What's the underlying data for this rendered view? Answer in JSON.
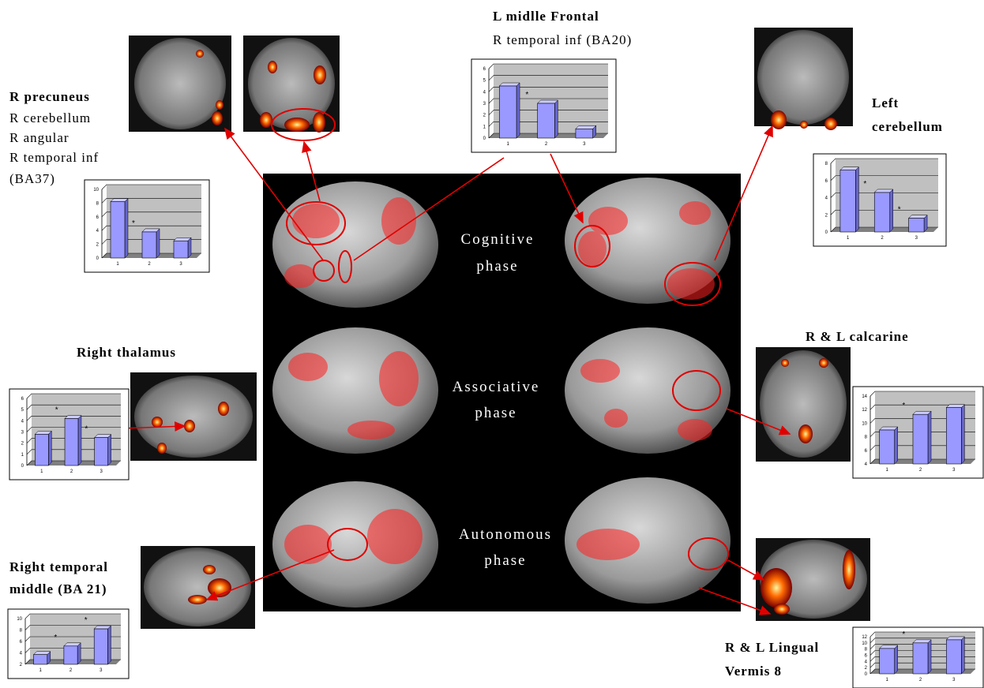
{
  "chart_data": [
    {
      "type": "bar",
      "categories": [
        "1",
        "2",
        "3"
      ],
      "values": [
        8.2,
        3.8,
        2.5
      ],
      "ylim": [
        0,
        10
      ],
      "yticks": [
        0,
        2,
        4,
        6,
        8,
        10
      ],
      "color": "#9999ff",
      "annotations": [
        "*"
      ]
    },
    {
      "type": "bar",
      "categories": [
        "1",
        "2",
        "3"
      ],
      "values": [
        4.5,
        3,
        0.8
      ],
      "ylim": [
        0,
        6
      ],
      "yticks": [
        0,
        1,
        2,
        3,
        4,
        5,
        6
      ],
      "color": "#9999ff",
      "annotations": [
        "*"
      ]
    },
    {
      "type": "bar",
      "categories": [
        "1",
        "2",
        "3"
      ],
      "values": [
        7.2,
        4.6,
        1.6
      ],
      "ylim": [
        0,
        8
      ],
      "yticks": [
        0,
        2,
        4,
        6,
        8
      ],
      "color": "#9999ff",
      "annotations": [
        "*",
        "*"
      ]
    },
    {
      "type": "bar",
      "categories": [
        "1",
        "2",
        "3"
      ],
      "values": [
        2.8,
        4.2,
        2.5
      ],
      "ylim": [
        0,
        6
      ],
      "yticks": [
        0,
        1,
        2,
        3,
        4,
        5,
        6
      ],
      "color": "#9999ff",
      "annotations": [
        "*",
        "*"
      ]
    },
    {
      "type": "bar",
      "categories": [
        "1",
        "2",
        "3"
      ],
      "values": [
        9,
        11.3,
        12.3
      ],
      "ylim": [
        4,
        14
      ],
      "yticks": [
        4,
        6,
        8,
        10,
        12,
        14
      ],
      "color": "#9999ff",
      "annotations": [
        "*"
      ]
    },
    {
      "type": "bar",
      "categories": [
        "1",
        "2",
        "3"
      ],
      "values": [
        3.7,
        5.2,
        8.2
      ],
      "ylim": [
        2,
        10
      ],
      "yticks": [
        2,
        4,
        6,
        8,
        10
      ],
      "color": "#9999ff",
      "annotations": [
        "*",
        "*"
      ]
    },
    {
      "type": "bar",
      "categories": [
        "1",
        "2",
        "3"
      ],
      "values": [
        8.2,
        10,
        11
      ],
      "ylim": [
        0,
        12
      ],
      "yticks": [
        0,
        2,
        4,
        6,
        8,
        10,
        12
      ],
      "color": "#9999ff",
      "annotations": [
        "*"
      ]
    }
  ],
  "phases": [
    [
      "Cognitive",
      "phase"
    ],
    [
      "Associative",
      "phase"
    ],
    [
      "Autonomous",
      "phase"
    ]
  ],
  "regions": {
    "precuneus": [
      "R precuneus",
      "R cerebellum",
      "R angular",
      "R temporal inf",
      "(BA37)"
    ],
    "frontal": [
      "L midlle Frontal",
      "R temporal inf (BA20)"
    ],
    "cerebellum": [
      "Left",
      "cerebellum"
    ],
    "thalamus": [
      "Right thalamus"
    ],
    "calcarine": [
      "R & L calcarine"
    ],
    "temporal": [
      "Right temporal",
      "middle (BA 21)"
    ],
    "lingual": [
      "R & L Lingual",
      "Vermis 8"
    ]
  }
}
